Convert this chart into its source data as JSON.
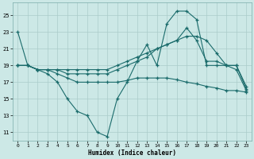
{
  "xlabel": "Humidex (Indice chaleur)",
  "background_color": "#cce8e6",
  "grid_color": "#aaccca",
  "line_color": "#1a6b6b",
  "xlim": [
    -0.5,
    23.5
  ],
  "ylim": [
    10.0,
    26.5
  ],
  "yticks": [
    11,
    13,
    15,
    17,
    19,
    21,
    23,
    25
  ],
  "xticks": [
    0,
    1,
    2,
    3,
    4,
    5,
    6,
    7,
    8,
    9,
    10,
    11,
    12,
    13,
    14,
    15,
    16,
    17,
    18,
    19,
    20,
    21,
    22,
    23
  ],
  "series1_x": [
    0,
    1,
    2,
    3,
    4,
    5,
    6,
    7,
    8,
    9,
    10,
    11,
    12,
    13,
    14,
    15,
    16,
    17,
    18,
    19,
    20,
    21,
    22,
    23
  ],
  "series1_y": [
    23,
    19,
    18.5,
    18.0,
    17.0,
    15.0,
    13.5,
    13.0,
    11.0,
    10.5,
    15.0,
    17.0,
    19.5,
    21.5,
    19.0,
    24.0,
    25.5,
    25.5,
    24.5,
    19.0,
    19.0,
    19.0,
    18.5,
    16.0
  ],
  "series2_x": [
    0,
    1,
    2,
    3,
    4,
    5,
    6,
    7,
    8,
    9,
    10,
    11,
    12,
    13,
    14,
    15,
    16,
    17,
    18,
    19,
    20,
    21,
    22,
    23
  ],
  "series2_y": [
    19,
    19,
    18.5,
    18.5,
    18.5,
    18.5,
    18.5,
    18.5,
    18.5,
    18.5,
    19.0,
    19.5,
    20.0,
    20.5,
    21.0,
    21.5,
    22.0,
    22.5,
    22.5,
    22.0,
    20.5,
    19.0,
    19.0,
    16.2
  ],
  "series3_x": [
    0,
    1,
    2,
    3,
    4,
    5,
    6,
    7,
    8,
    9,
    10,
    11,
    12,
    13,
    14,
    15,
    16,
    17,
    18,
    19,
    20,
    21,
    22,
    23
  ],
  "series3_y": [
    19,
    19,
    18.5,
    18.5,
    18.5,
    18.0,
    18.0,
    18.0,
    18.0,
    18.0,
    18.5,
    19.0,
    19.5,
    20.0,
    21.0,
    21.5,
    22.0,
    23.5,
    22.0,
    19.5,
    19.5,
    19.0,
    19.0,
    16.5
  ],
  "series4_x": [
    0,
    1,
    2,
    3,
    4,
    5,
    6,
    7,
    8,
    9,
    10,
    11,
    12,
    13,
    14,
    15,
    16,
    17,
    18,
    19,
    20,
    21,
    22,
    23
  ],
  "series4_y": [
    19,
    19,
    18.5,
    18.5,
    18.0,
    17.5,
    17.0,
    17.0,
    17.0,
    17.0,
    17.0,
    17.2,
    17.5,
    17.5,
    17.5,
    17.5,
    17.3,
    17.0,
    16.8,
    16.5,
    16.3,
    16.0,
    16.0,
    15.8
  ]
}
